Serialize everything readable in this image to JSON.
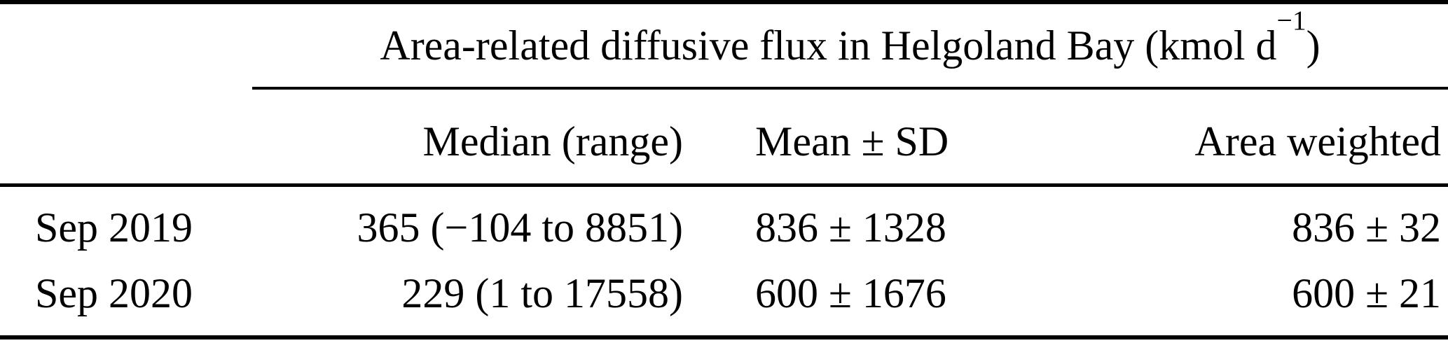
{
  "colors": {
    "background": "#ffffff",
    "text": "#000000",
    "rule": "#000000"
  },
  "table": {
    "title": {
      "text": "Area-related diffusive flux in Helgoland Bay (kmol d",
      "sup": "−1",
      "close": ")"
    },
    "columns": [
      "Median (range)",
      "Mean ± SD",
      "Area weighted"
    ],
    "rows": [
      {
        "label": "Sep 2019",
        "median_range": "365 (−104 to 8851)",
        "mean_sd": "836 ± 1328",
        "area_weighted": "836 ± 32"
      },
      {
        "label": "Sep 2020",
        "median_range": "229 (1 to 17558)",
        "mean_sd": "600 ± 1676",
        "area_weighted": "600 ± 21"
      }
    ]
  }
}
